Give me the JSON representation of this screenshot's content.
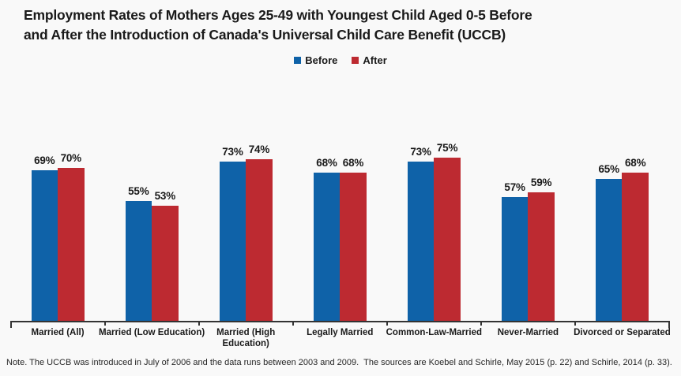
{
  "title": {
    "line1": "Employment Rates of Mothers Ages 25-49 with Youngest Child Aged 0-5 Before",
    "line2": "and After the Introduction of Canada's Universal Child Care Benefit (UCCB)"
  },
  "colors": {
    "before": "#0F62A8",
    "after": "#BD2A31",
    "background": "#F9F9F9",
    "axis": "#333333",
    "text": "#1A1A1A"
  },
  "chart_data": {
    "type": "bar",
    "categories": [
      "Married (All)",
      "Married (Low Education)",
      "Married (High\nEducation)",
      "Legally Married",
      "Common-Law-Married",
      "Never-Married",
      "Divorced or Separated"
    ],
    "series": [
      {
        "name": "Before",
        "color": "#0F62A8",
        "values": [
          69,
          55,
          73,
          68,
          73,
          57,
          65
        ]
      },
      {
        "name": "After",
        "color": "#BD2A31",
        "values": [
          70,
          53,
          74,
          68,
          75,
          59,
          68
        ]
      }
    ],
    "value_suffix": "%",
    "title": "Employment Rates of Mothers Ages 25-49 with Youngest Child Aged 0-5 Before and After the Introduction of Canada's Universal Child Care Benefit (UCCB)",
    "xlabel": "",
    "ylabel": "",
    "ylim": [
      0,
      100
    ],
    "grid": false,
    "data_labels": true,
    "legend_position": "top-center"
  },
  "note": "Note. The UCCB was introduced in July of 2006 and the data runs between 2003 and 2009.  The sources are Koebel and Schirle, May 2015 (p. 22) and Schirle, 2014 (p. 33)."
}
